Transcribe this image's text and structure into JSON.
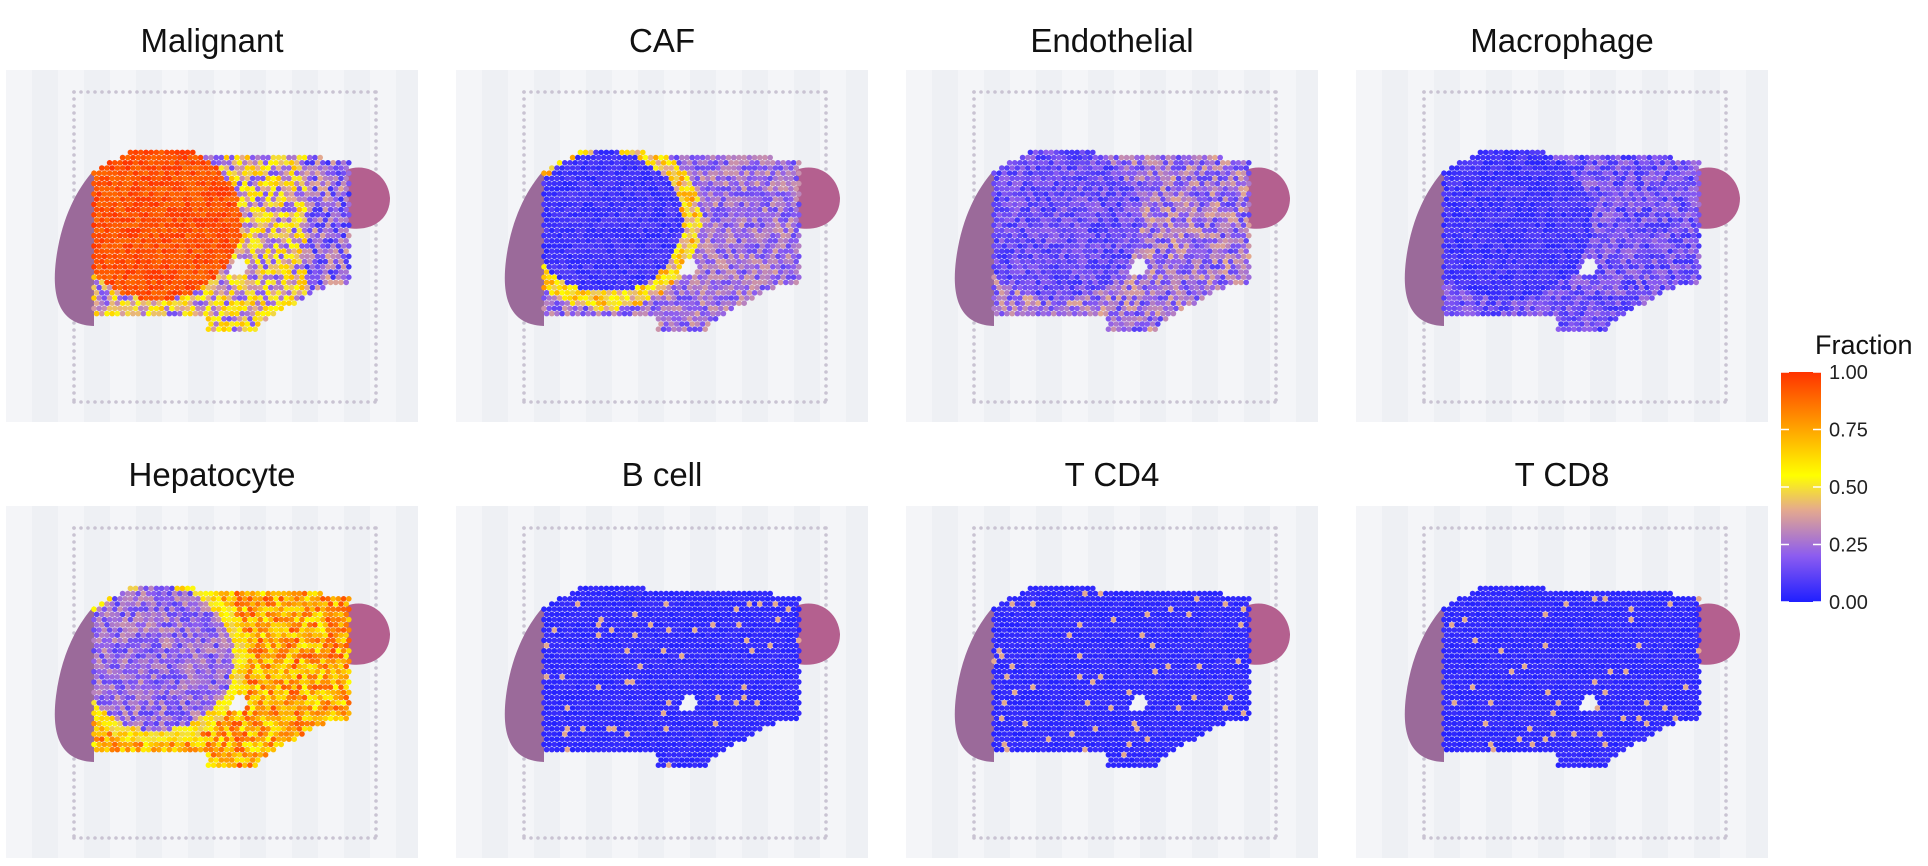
{
  "chart_data": {
    "type": "heatmap",
    "description_type": "spatial feature maps",
    "panels": [
      {
        "title": "Malignant",
        "pattern": "malignant"
      },
      {
        "title": "CAF",
        "pattern": "caf"
      },
      {
        "title": "Endothelial",
        "pattern": "endothelial"
      },
      {
        "title": "Macrophage",
        "pattern": "macrophage"
      },
      {
        "title": "Hepatocyte",
        "pattern": "hepatocyte"
      },
      {
        "title": "B cell",
        "pattern": "sparse"
      },
      {
        "title": "T CD4",
        "pattern": "sparse"
      },
      {
        "title": "T CD8",
        "pattern": "sparse"
      }
    ],
    "legend": {
      "title": "Fraction",
      "ticks": [
        "1.00",
        "0.75",
        "0.50",
        "0.25",
        "0.00"
      ],
      "tick_values": [
        1.0,
        0.75,
        0.5,
        0.25,
        0.0
      ],
      "range": [
        0,
        1
      ],
      "colors": [
        "#1f1fff",
        "#8c5cf0",
        "#e4a98e",
        "#ffff00",
        "#ffa500",
        "#ff3300"
      ],
      "placement": "right"
    }
  }
}
